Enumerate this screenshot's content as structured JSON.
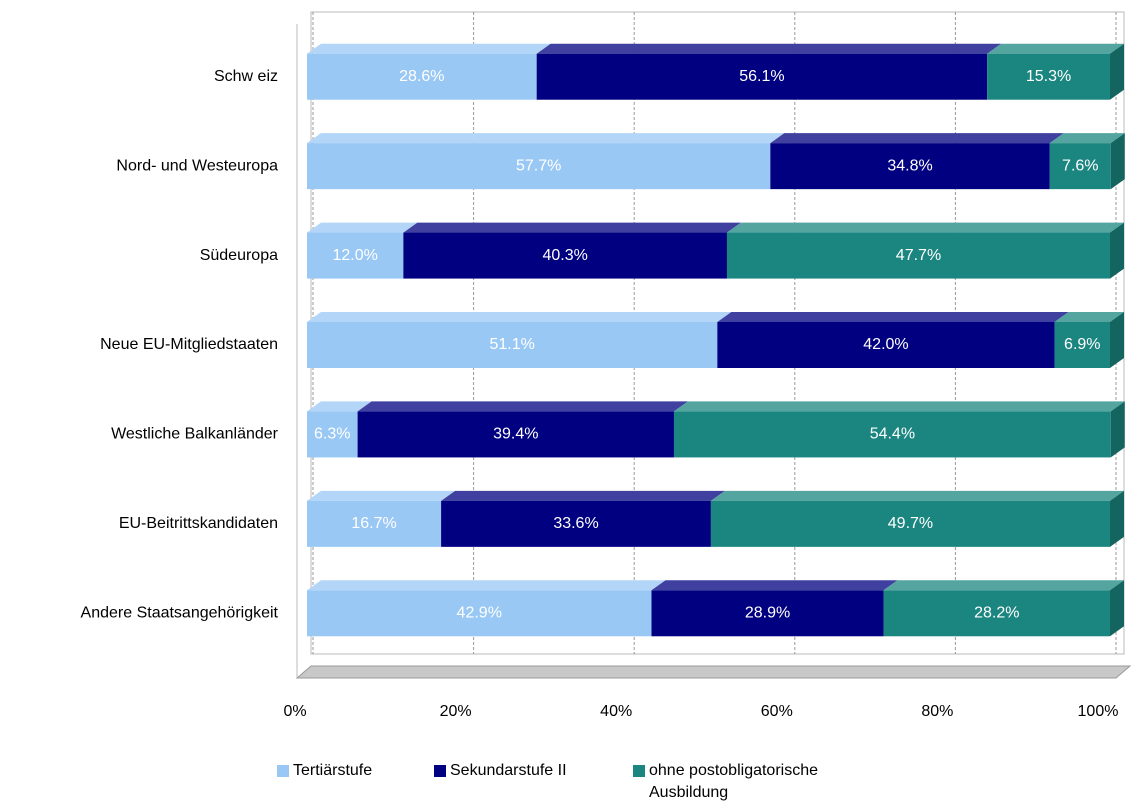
{
  "chart_data": {
    "type": "stacked-bar-horizontal",
    "categories": [
      "Schw eiz",
      "Nord- und Westeuropa",
      "Südeuropa",
      "Neue EU-Mitgliedstaaten",
      "Westliche Balkanländer",
      "EU-Beitrittskandidaten",
      "Andere Staatsangehörigkeit"
    ],
    "series": [
      {
        "name": "Tertiärstufe",
        "color": "#99c8f5",
        "values": [
          28.6,
          57.7,
          12.0,
          51.1,
          6.3,
          16.7,
          42.9
        ],
        "value_labels": [
          "28.6%",
          "57.7%",
          "12.0%",
          "51.1%",
          "6.3%",
          "16.7%",
          "42.9%"
        ]
      },
      {
        "name": "Sekundarstufe II",
        "color": "#000080",
        "values": [
          56.1,
          34.8,
          40.3,
          42.0,
          39.4,
          33.6,
          28.9
        ],
        "value_labels": [
          "56.1%",
          "34.8%",
          "40.3%",
          "42.0%",
          "39.4%",
          "33.6%",
          "28.9%"
        ]
      },
      {
        "name": "ohne postobligatorische Ausbildung",
        "color": "#1b8580",
        "values": [
          15.3,
          7.6,
          47.7,
          6.9,
          54.4,
          49.7,
          28.2
        ],
        "value_labels": [
          "15.3%",
          "7.6%",
          "47.7%",
          "6.9%",
          "54.4%",
          "49.7%",
          "28.2%"
        ]
      }
    ],
    "xlim": [
      0,
      100
    ],
    "xticks": [
      {
        "value": 0,
        "label": "0%"
      },
      {
        "value": 20,
        "label": "20%"
      },
      {
        "value": 40,
        "label": "40%"
      },
      {
        "value": 60,
        "label": "60%"
      },
      {
        "value": 80,
        "label": "80%"
      },
      {
        "value": 100,
        "label": "100%"
      }
    ],
    "grid": true
  }
}
